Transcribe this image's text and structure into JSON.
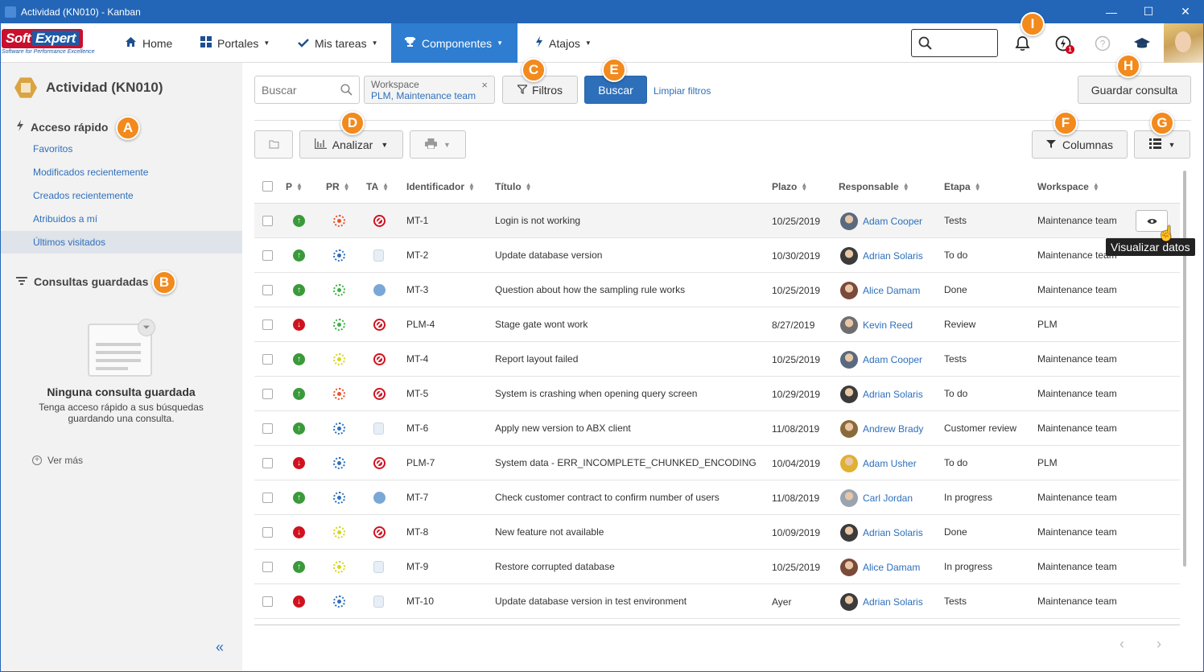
{
  "window": {
    "title": "Actividad (KN010) - Kanban",
    "controls": [
      "—",
      "☐",
      "✕"
    ]
  },
  "nav": {
    "logo_text_1": "Soft",
    "logo_text_2": "Expert",
    "logo_tagline": "Software for Performance Excellence",
    "items": [
      {
        "label": "Home",
        "icon": "home-icon"
      },
      {
        "label": "Portales",
        "icon": "grid-icon"
      },
      {
        "label": "Mis tareas",
        "icon": "check-icon"
      },
      {
        "label": "Componentes",
        "icon": "trophy-icon"
      },
      {
        "label": "Atajos",
        "icon": "bolt-icon"
      }
    ],
    "notification_count": "1",
    "brand_color": "#2e7dd1"
  },
  "sidebar": {
    "title": "Actividad (KN010)",
    "quick_access_title": "Acceso rápido",
    "quick_links": [
      "Favoritos",
      "Modificados recientemente",
      "Creados recientemente",
      "Atribuidos a mí",
      "Últimos visitados"
    ],
    "saved_queries_title": "Consultas guardadas",
    "empty_title": "Ninguna consulta guardada",
    "empty_desc": "Tenga acceso rápido a sus búsquedas guardando una consulta.",
    "see_more": "Ver más",
    "collapse": "«"
  },
  "toolbar": {
    "search_placeholder": "Buscar",
    "chip_key": "Workspace",
    "chip_value": "PLM, Maintenance team",
    "chip_remove": "×",
    "filters_label": "Filtros",
    "search_button": "Buscar",
    "clear_filters": "Limpiar filtros",
    "save_query": "Guardar consulta",
    "analyze_label": "Analizar",
    "columns_label": "Columnas"
  },
  "markers": [
    "A",
    "B",
    "C",
    "D",
    "E",
    "F",
    "G",
    "H",
    "I"
  ],
  "table": {
    "headers": [
      "P",
      "PR",
      "TA",
      "Identificador",
      "Título",
      "Plazo",
      "Responsable",
      "Etapa",
      "Workspace"
    ],
    "rows": [
      {
        "p": "up",
        "pr": "#e8542c",
        "ta": "block",
        "id": "MT-1",
        "title": "Login is not working",
        "due": "10/25/2019",
        "resp": "Adam Cooper",
        "stage": "Tests",
        "ws": "Maintenance team"
      },
      {
        "p": "up",
        "pr": "#2e6fba",
        "ta": "doc",
        "id": "MT-2",
        "title": "Update database version",
        "due": "10/30/2019",
        "resp": "Adrian Solaris",
        "stage": "To do",
        "ws": "Maintenance team"
      },
      {
        "p": "up",
        "pr": "#3cb043",
        "ta": "user",
        "id": "MT-3",
        "title": "Question about how the sampling rule works",
        "due": "10/25/2019",
        "resp": "Alice Damam",
        "stage": "Done",
        "ws": "Maintenance team"
      },
      {
        "p": "down",
        "pr": "#3cb043",
        "ta": "block",
        "id": "PLM-4",
        "title": "Stage gate wont work",
        "due": "8/27/2019",
        "resp": "Kevin Reed",
        "stage": "Review",
        "ws": "PLM"
      },
      {
        "p": "up",
        "pr": "#d6d420",
        "ta": "block",
        "id": "MT-4",
        "title": "Report layout failed",
        "due": "10/25/2019",
        "resp": "Adam Cooper",
        "stage": "Tests",
        "ws": "Maintenance team"
      },
      {
        "p": "up",
        "pr": "#e8542c",
        "ta": "block",
        "id": "MT-5",
        "title": "System is crashing when opening query screen",
        "due": "10/29/2019",
        "resp": "Adrian Solaris",
        "stage": "To do",
        "ws": "Maintenance team"
      },
      {
        "p": "up",
        "pr": "#2e6fba",
        "ta": "doc",
        "id": "MT-6",
        "title": "Apply new version to ABX client",
        "due": "11/08/2019",
        "resp": "Andrew Brady",
        "stage": "Customer review",
        "ws": "Maintenance team"
      },
      {
        "p": "down",
        "pr": "#2e6fba",
        "ta": "block",
        "id": "PLM-7",
        "title": "System data - ERR_INCOMPLETE_CHUNKED_ENCODING",
        "due": "10/04/2019",
        "resp": "Adam Usher",
        "stage": "To do",
        "ws": "PLM"
      },
      {
        "p": "up",
        "pr": "#2e6fba",
        "ta": "user",
        "id": "MT-7",
        "title": "Check customer contract to confirm number of users",
        "due": "11/08/2019",
        "resp": "Carl Jordan",
        "stage": "In progress",
        "ws": "Maintenance team"
      },
      {
        "p": "down",
        "pr": "#d6d420",
        "ta": "block",
        "id": "MT-8",
        "title": "New feature not available",
        "due": "10/09/2019",
        "resp": "Adrian Solaris",
        "stage": "Done",
        "ws": "Maintenance team"
      },
      {
        "p": "up",
        "pr": "#d6d420",
        "ta": "doc",
        "id": "MT-9",
        "title": "Restore corrupted database",
        "due": "10/25/2019",
        "resp": "Alice Damam",
        "stage": "In progress",
        "ws": "Maintenance team"
      },
      {
        "p": "down",
        "pr": "#2e6fba",
        "ta": "doc",
        "id": "MT-10",
        "title": "Update database version in test environment",
        "due": "Ayer",
        "resp": "Adrian Solaris",
        "stage": "Tests",
        "ws": "Maintenance team"
      }
    ],
    "tooltip": "Visualizar datos"
  },
  "pager": {
    "prev": "‹",
    "next": "›"
  }
}
